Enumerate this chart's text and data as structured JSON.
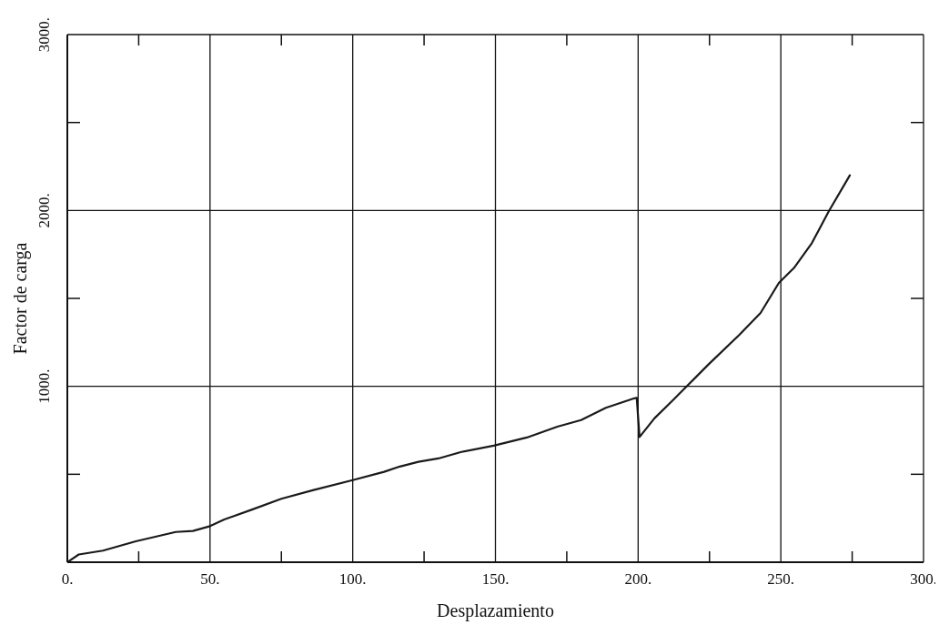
{
  "chart_data": {
    "type": "line",
    "xlabel": "Desplazamiento",
    "ylabel": "Factor de carga",
    "xlim": [
      0,
      300
    ],
    "ylim": [
      0,
      3000
    ],
    "xticks": [
      {
        "value": 0,
        "label": "0."
      },
      {
        "value": 25,
        "label": null
      },
      {
        "value": 50,
        "label": "50."
      },
      {
        "value": 75,
        "label": null
      },
      {
        "value": 100,
        "label": "100."
      },
      {
        "value": 125,
        "label": null
      },
      {
        "value": 150,
        "label": "150."
      },
      {
        "value": 175,
        "label": null
      },
      {
        "value": 200,
        "label": "200."
      },
      {
        "value": 225,
        "label": null
      },
      {
        "value": 250,
        "label": "250."
      },
      {
        "value": 275,
        "label": null
      },
      {
        "value": 300,
        "label": "300."
      }
    ],
    "yticks": [
      {
        "value": 0,
        "label": null
      },
      {
        "value": 500,
        "label": null
      },
      {
        "value": 1000,
        "label": "1000."
      },
      {
        "value": 1500,
        "label": null
      },
      {
        "value": 2000,
        "label": "2000."
      },
      {
        "value": 2500,
        "label": null
      },
      {
        "value": 3000,
        "label": "3000."
      }
    ],
    "grid": true,
    "marker": "none",
    "line_style": "solid",
    "series": [
      {
        "color": "#1a1a1a",
        "x": [
          0,
          4,
          12.5,
          24,
          38,
          44,
          50,
          55,
          64.5,
          75,
          86,
          100,
          111,
          116.5,
          123,
          130,
          137.8,
          149.4,
          161,
          171.7,
          180,
          188.7,
          198.7,
          199.5,
          200.5,
          205.7,
          212,
          215.8,
          224.8,
          235.4,
          242.9,
          249.3,
          254.6,
          260.9,
          266.8,
          274.2
        ],
        "values": [
          0,
          44,
          66,
          119,
          172,
          178,
          205,
          243,
          298,
          361,
          409,
          467,
          514,
          544,
          571,
          590,
          626,
          663,
          709,
          771,
          808,
          878,
          932,
          935,
          712,
          818,
          918,
          980,
          1127,
          1292,
          1417,
          1588,
          1673,
          1815,
          1995,
          2200
        ]
      }
    ]
  }
}
